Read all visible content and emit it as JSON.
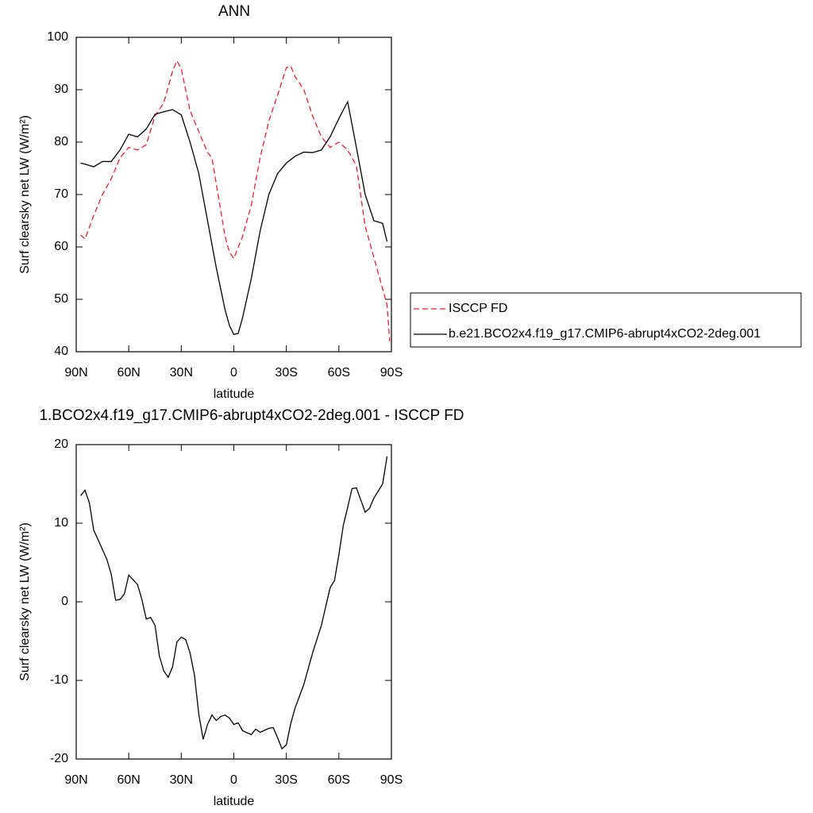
{
  "chart_data": [
    {
      "type": "line",
      "title": "ANN",
      "xlabel": "latitude",
      "ylabel": "Surf clearsky net LW (W/m²)",
      "xlim": [
        90,
        -90
      ],
      "ylim": [
        40,
        100
      ],
      "xticks": [
        {
          "value": 90,
          "label": "90N"
        },
        {
          "value": 60,
          "label": "60N"
        },
        {
          "value": 30,
          "label": "30N"
        },
        0,
        {
          "value": -30,
          "label": "30S"
        },
        {
          "value": -60,
          "label": "60S"
        },
        {
          "value": -90,
          "label": "90S"
        }
      ],
      "yticks": [
        40,
        50,
        60,
        70,
        80,
        90,
        100
      ],
      "legend": "right",
      "series": [
        {
          "name": "ISCCP FD",
          "color": "#e8222a",
          "line_style": "dashed",
          "x": [
            87.5,
            85,
            80,
            75,
            70,
            65,
            60,
            55,
            50,
            45,
            40,
            35,
            32.5,
            30,
            25,
            20,
            15,
            12.5,
            10,
            5,
            2.5,
            0,
            -5,
            -10,
            -15,
            -20,
            -25,
            -30,
            -32.5,
            -35,
            -40,
            -45,
            -50,
            -55,
            -60,
            -65,
            -70,
            -75,
            -80,
            -85,
            -87.5,
            -89
          ],
          "values": [
            62.3,
            61.5,
            66,
            70,
            73,
            77,
            79,
            78.5,
            79.5,
            85,
            87.5,
            93.5,
            95.5,
            94,
            86,
            82,
            78,
            77,
            72,
            62,
            59,
            57.8,
            62,
            68,
            77,
            84,
            89,
            94.2,
            94.5,
            92.5,
            90,
            85,
            81,
            79,
            80,
            78.5,
            75.5,
            64,
            58,
            52,
            49,
            42
          ]
        },
        {
          "name": "b.e21.BCO2x4.f19_g17.CMIP6-abrupt4xCO2-2deg.001",
          "color": "#000000",
          "line_style": "solid",
          "x": [
            87.5,
            85,
            80,
            75,
            70,
            65,
            60,
            55,
            50,
            45,
            40,
            35,
            30,
            25,
            20,
            15,
            10,
            5,
            2.5,
            0,
            -2.5,
            -5,
            -10,
            -15,
            -20,
            -25,
            -30,
            -35,
            -40,
            -45,
            -50,
            -55,
            -60,
            -65,
            -70,
            -75,
            -80,
            -85,
            -87.5
          ],
          "values": [
            76,
            75.8,
            75.3,
            76.3,
            76.3,
            78.5,
            81.5,
            81,
            82.5,
            85.3,
            85.8,
            86.2,
            85.2,
            80,
            74,
            65,
            56,
            48,
            45,
            43.3,
            43.5,
            46.5,
            54,
            63,
            70,
            74,
            76,
            77.3,
            78.1,
            78,
            78.5,
            81,
            84.5,
            87.7,
            79,
            70,
            65,
            64.5,
            61
          ]
        }
      ]
    },
    {
      "type": "line",
      "title": "1.BCO2x4.f19_g17.CMIP6-abrupt4xCO2-2deg.001 - ISCCP FD",
      "xlabel": "latitude",
      "ylabel": "Surf clearsky net LW (W/m²)",
      "xlim": [
        90,
        -90
      ],
      "ylim": [
        -20,
        20
      ],
      "xticks": [
        {
          "value": 90,
          "label": "90N"
        },
        {
          "value": 60,
          "label": "60N"
        },
        {
          "value": 30,
          "label": "30N"
        },
        0,
        {
          "value": -30,
          "label": "30S"
        },
        {
          "value": -60,
          "label": "60S"
        },
        {
          "value": -90,
          "label": "90S"
        }
      ],
      "yticks": [
        -20,
        -10,
        0,
        10,
        20
      ],
      "color": "#000000",
      "x": [
        87.5,
        85,
        82.5,
        80,
        77.5,
        72.5,
        70,
        67.5,
        65,
        62.5,
        60,
        57.5,
        55,
        52.5,
        50,
        47.5,
        45,
        42.5,
        40,
        37.5,
        35,
        32.5,
        30,
        27.5,
        25,
        22.5,
        20,
        17.5,
        15,
        12.5,
        10,
        7.5,
        5,
        2.5,
        0,
        -2.5,
        -5,
        -10,
        -12.5,
        -15,
        -20,
        -22.5,
        -25,
        -27.5,
        -30,
        -32.5,
        -35,
        -40,
        -45,
        -50,
        -55,
        -57.5,
        -60,
        -62.5,
        -65,
        -67.5,
        -70,
        -75,
        -77.5,
        -80,
        -85,
        -87.5
      ],
      "values": [
        13.5,
        14.2,
        12.6,
        9.1,
        7.9,
        5.4,
        3.5,
        0.2,
        0.3,
        1,
        3.4,
        2.8,
        2.2,
        0.3,
        -2.2,
        -2,
        -3,
        -6.9,
        -8.8,
        -9.6,
        -8.3,
        -5.1,
        -4.5,
        -4.8,
        -6.5,
        -9.3,
        -14.3,
        -17.5,
        -15.6,
        -14.4,
        -15.1,
        -14.6,
        -14.4,
        -14.8,
        -15.6,
        -15.4,
        -16.4,
        -16.9,
        -16.2,
        -16.6,
        -16.1,
        -16,
        -17.3,
        -18.7,
        -18.2,
        -15.5,
        -13.5,
        -10.5,
        -6.5,
        -3,
        1.8,
        2.7,
        6,
        9.7,
        12,
        14.4,
        14.5,
        11.4,
        11.9,
        13.2,
        15,
        18.5
      ]
    }
  ]
}
